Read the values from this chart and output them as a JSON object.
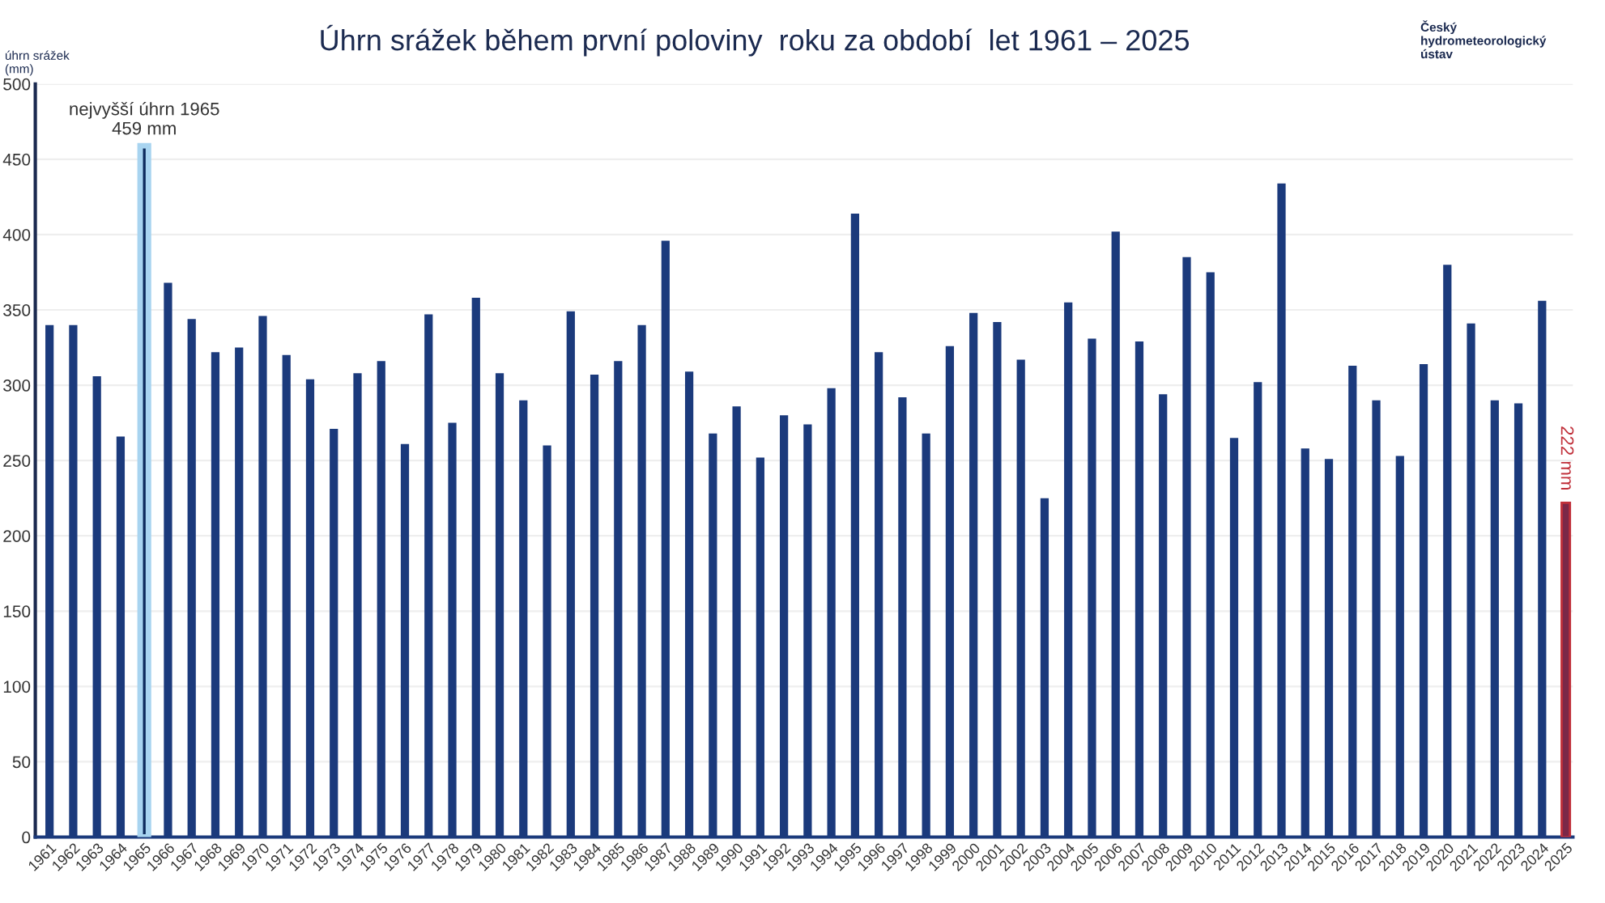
{
  "chart_data": {
    "type": "bar",
    "title": "Úhrn srážek během první poloviny  roku za období  let 1961 – 2025",
    "ylabel": "úhrn srážek\n(mm)",
    "categories": [
      "1961",
      "1962",
      "1963",
      "1964",
      "1965",
      "1966",
      "1967",
      "1968",
      "1969",
      "1970",
      "1971",
      "1972",
      "1973",
      "1974",
      "1975",
      "1976",
      "1977",
      "1978",
      "1979",
      "1980",
      "1981",
      "1982",
      "1983",
      "1984",
      "1985",
      "1986",
      "1987",
      "1988",
      "1989",
      "1990",
      "1991",
      "1992",
      "1993",
      "1994",
      "1995",
      "1996",
      "1997",
      "1998",
      "1999",
      "2000",
      "2001",
      "2002",
      "2003",
      "2004",
      "2005",
      "2006",
      "2007",
      "2008",
      "2009",
      "2010",
      "2011",
      "2012",
      "2013",
      "2014",
      "2015",
      "2016",
      "2017",
      "2018",
      "2019",
      "2020",
      "2021",
      "2022",
      "2023",
      "2024",
      "2025"
    ],
    "values": [
      340,
      340,
      306,
      266,
      459,
      368,
      344,
      322,
      325,
      346,
      320,
      304,
      271,
      308,
      316,
      261,
      347,
      275,
      358,
      308,
      290,
      260,
      349,
      307,
      316,
      340,
      396,
      309,
      268,
      286,
      252,
      280,
      274,
      298,
      414,
      322,
      292,
      268,
      326,
      348,
      342,
      317,
      225,
      355,
      331,
      402,
      329,
      294,
      385,
      375,
      265,
      302,
      434,
      258,
      251,
      313,
      290,
      253,
      314,
      380,
      341,
      290,
      288,
      356,
      222
    ],
    "colors": [
      "#1b3a7c",
      "#1b3a7c",
      "#1b3a7c",
      "#1b3a7c",
      "#0d2a5c",
      "#1b3a7c",
      "#1b3a7c",
      "#1b3a7c",
      "#1b3a7c",
      "#1b3a7c",
      "#1b3a7c",
      "#1b3a7c",
      "#1b3a7c",
      "#1b3a7c",
      "#1b3a7c",
      "#1b3a7c",
      "#1b3a7c",
      "#1b3a7c",
      "#1b3a7c",
      "#1b3a7c",
      "#1b3a7c",
      "#1b3a7c",
      "#1b3a7c",
      "#1b3a7c",
      "#1b3a7c",
      "#1b3a7c",
      "#1b3a7c",
      "#1b3a7c",
      "#1b3a7c",
      "#1b3a7c",
      "#1b3a7c",
      "#1b3a7c",
      "#1b3a7c",
      "#1b3a7c",
      "#1b3a7c",
      "#1b3a7c",
      "#1b3a7c",
      "#1b3a7c",
      "#1b3a7c",
      "#1b3a7c",
      "#1b3a7c",
      "#1b3a7c",
      "#1b3a7c",
      "#1b3a7c",
      "#1b3a7c",
      "#1b3a7c",
      "#1b3a7c",
      "#1b3a7c",
      "#1b3a7c",
      "#1b3a7c",
      "#1b3a7c",
      "#1b3a7c",
      "#1b3a7c",
      "#1b3a7c",
      "#1b3a7c",
      "#1b3a7c",
      "#1b3a7c",
      "#1b3a7c",
      "#1b3a7c",
      "#1b3a7c",
      "#1b3a7c",
      "#1b3a7c",
      "#1b3a7c",
      "#1b3a7c",
      "#7a2848"
    ],
    "value_labels": [
      null,
      null,
      null,
      null,
      "nejvyšší úhrn 1965\n459 mm",
      null,
      null,
      null,
      null,
      null,
      null,
      null,
      null,
      null,
      null,
      null,
      null,
      null,
      null,
      null,
      null,
      null,
      null,
      null,
      null,
      null,
      null,
      null,
      null,
      null,
      null,
      null,
      null,
      null,
      null,
      null,
      null,
      null,
      null,
      null,
      null,
      null,
      null,
      null,
      null,
      null,
      null,
      null,
      null,
      null,
      null,
      null,
      null,
      null,
      null,
      null,
      null,
      null,
      null,
      null,
      null,
      null,
      null,
      null,
      "222 mm"
    ],
    "annotations": [
      "Český\nhydrometeorologický\nústav"
    ],
    "ylim": [
      0,
      500
    ],
    "yticks": [
      0,
      50,
      100,
      150,
      200,
      250,
      300,
      350,
      400,
      450,
      500
    ],
    "grid": "y"
  }
}
